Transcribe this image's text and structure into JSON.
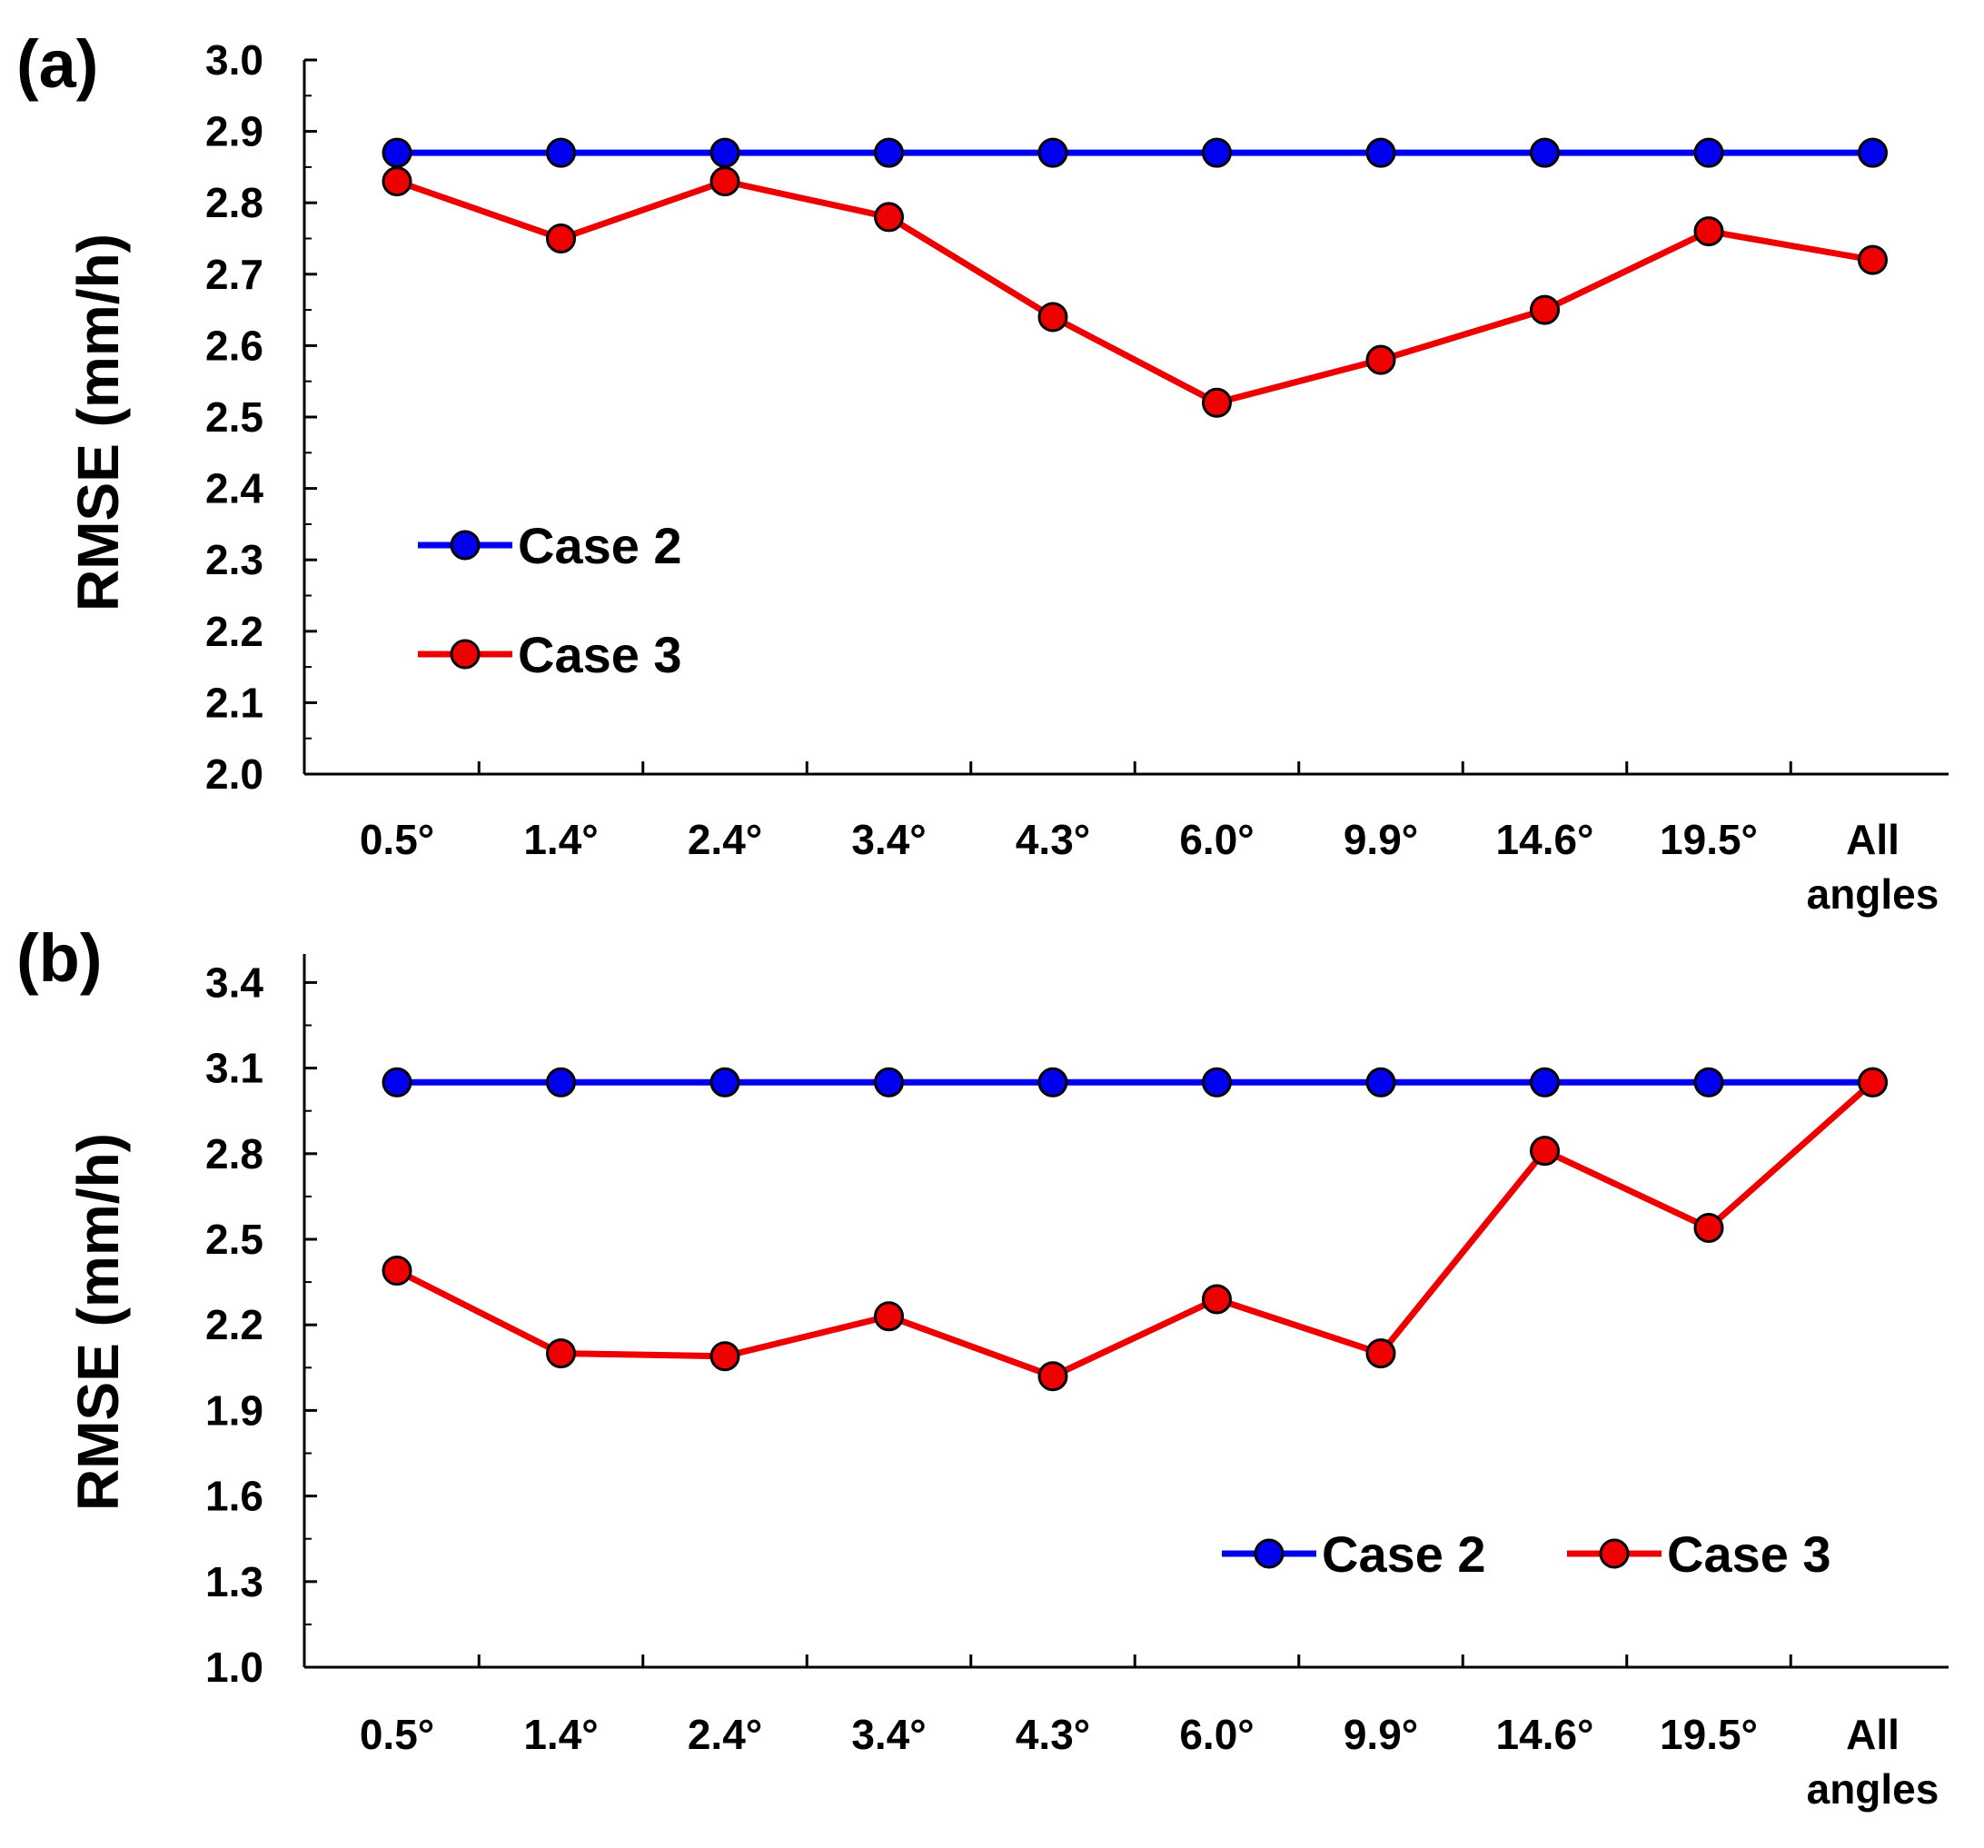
{
  "chart_data": [
    {
      "type": "line",
      "panel_label": "(a)",
      "categories": [
        "0.5°",
        "1.4°",
        "2.4°",
        "3.4°",
        "4.3°",
        "6.0°",
        "9.9°",
        "14.6°",
        "19.5°",
        "All angles"
      ],
      "ylabel": "RMSE (mm/h)",
      "xlabel": "",
      "ylim": [
        2.0,
        3.0
      ],
      "yticks": [
        "2.0",
        "2.1",
        "2.2",
        "2.3",
        "2.4",
        "2.5",
        "2.6",
        "2.7",
        "2.8",
        "2.9",
        "3.0"
      ],
      "legend_position": "middle-left",
      "series": [
        {
          "name": "Case 2",
          "color": "#0000ee",
          "values": [
            2.87,
            2.87,
            2.87,
            2.87,
            2.87,
            2.87,
            2.87,
            2.87,
            2.87,
            2.87
          ]
        },
        {
          "name": "Case 3",
          "color": "#ee0000",
          "values": [
            2.83,
            2.75,
            2.83,
            2.78,
            2.64,
            2.52,
            2.58,
            2.65,
            2.76,
            2.72
          ]
        }
      ]
    },
    {
      "type": "line",
      "panel_label": "(b)",
      "categories": [
        "0.5°",
        "1.4°",
        "2.4°",
        "3.4°",
        "4.3°",
        "6.0°",
        "9.9°",
        "14.6°",
        "19.5°",
        "All angles"
      ],
      "ylabel": "RMSE (mm/h)",
      "xlabel": "",
      "ylim": [
        1.0,
        3.5
      ],
      "yticks": [
        "1.0",
        "1.3",
        "1.6",
        "1.9",
        "2.2",
        "2.5",
        "2.8",
        "3.1",
        "3.4"
      ],
      "legend_position": "bottom-right",
      "series": [
        {
          "name": "Case 2",
          "color": "#0000ee",
          "values": [
            3.05,
            3.05,
            3.05,
            3.05,
            3.05,
            3.05,
            3.05,
            3.05,
            3.05,
            3.05
          ]
        },
        {
          "name": "Case 3",
          "color": "#ee0000",
          "values": [
            2.39,
            2.1,
            2.09,
            2.23,
            2.02,
            2.29,
            2.1,
            2.81,
            2.54,
            3.05
          ]
        }
      ]
    }
  ]
}
